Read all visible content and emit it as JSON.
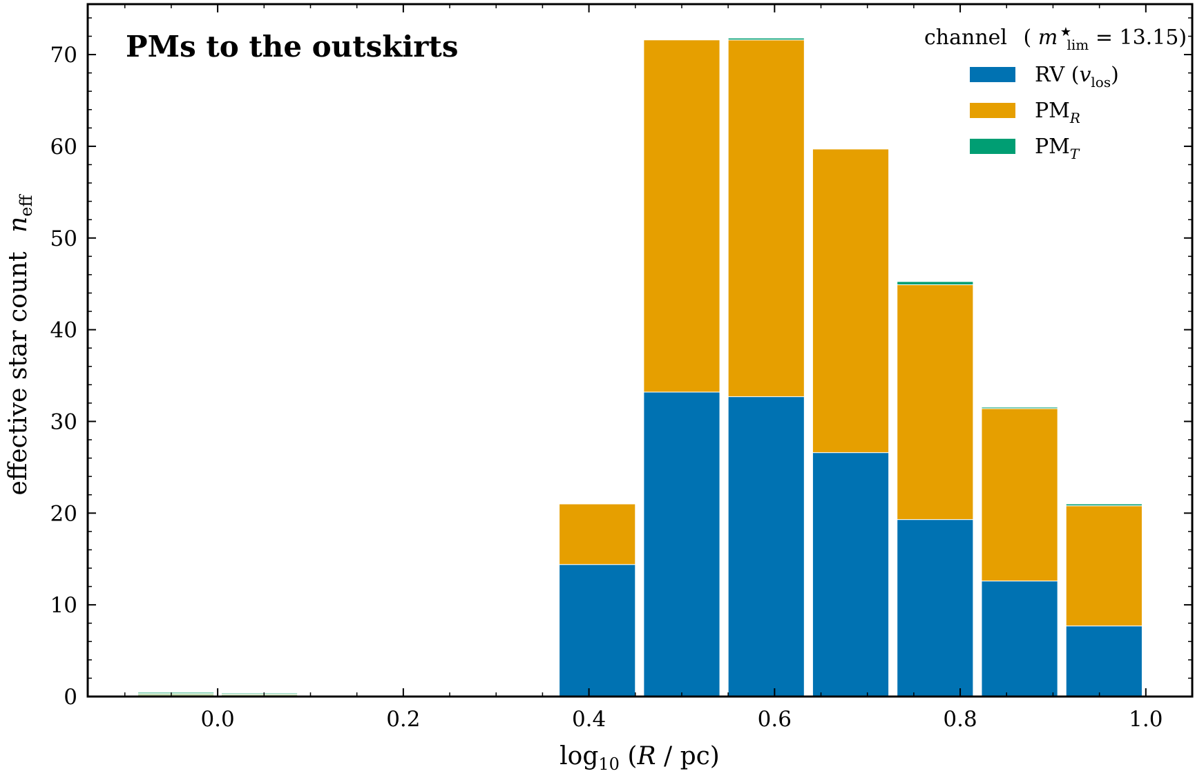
{
  "chart_data": {
    "type": "bar",
    "stacked": true,
    "title": "PMs to the outskirts",
    "xlabel": "log₁₀ (R / pc)",
    "ylabel": "effective star count",
    "ylabel_symbol": "n",
    "ylabel_subscript": "eff",
    "xlim": [
      -0.14,
      1.05
    ],
    "ylim": [
      0,
      75.5
    ],
    "x_ticks": [
      0.0,
      0.2,
      0.4,
      0.6,
      0.8,
      1.0
    ],
    "x_tick_labels": [
      "0.0",
      "0.2",
      "0.4",
      "0.6",
      "0.8",
      "1.0"
    ],
    "y_ticks": [
      0,
      10,
      20,
      30,
      40,
      50,
      60,
      70
    ],
    "y_tick_labels": [
      "0",
      "10",
      "20",
      "30",
      "40",
      "50",
      "60",
      "70"
    ],
    "legend": {
      "title": "channel",
      "title_math": "(m★lim = 13.15)",
      "title_math_parts": {
        "open": "(",
        "m": "m",
        "sup": "★",
        "sub": "lim",
        "rest": " = 13.15)"
      },
      "position": "top-right",
      "entries": [
        {
          "base": "RV (",
          "math": "v",
          "sub": "los",
          "tail": ")"
        },
        {
          "base": "PM",
          "math": "",
          "sub": "R",
          "tail": ""
        },
        {
          "base": "PM",
          "math": "",
          "sub": "T",
          "tail": ""
        }
      ]
    },
    "bin_centers": [
      -0.045,
      0.045,
      0.409,
      0.5,
      0.591,
      0.682,
      0.773,
      0.864,
      0.955
    ],
    "bin_width": 0.082,
    "series": [
      {
        "name": "RV (v_los)",
        "color": "#0072b2",
        "values": [
          0.3,
          0.25,
          14.4,
          33.2,
          32.7,
          26.6,
          19.3,
          12.6,
          7.7
        ]
      },
      {
        "name": "PM_R",
        "color": "#e69f00",
        "values": [
          0,
          0,
          6.6,
          38.4,
          38.9,
          33.1,
          25.6,
          18.8,
          13.1
        ]
      },
      {
        "name": "PM_T",
        "color": "#009e73",
        "values": [
          0.2,
          0.15,
          0,
          0,
          0.2,
          0,
          0.35,
          0.15,
          0.2
        ]
      }
    ],
    "faded_bins": [
      0,
      1
    ],
    "faded_colors": [
      "#b8d4a0",
      "#e0d9a0",
      "#7fd1b0"
    ],
    "grid": false
  }
}
